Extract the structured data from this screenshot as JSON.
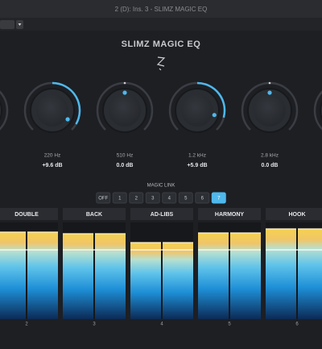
{
  "window": {
    "title": "2 (D): Ins. 3 - SLIMZ MAGIC EQ"
  },
  "plugin": {
    "title": "SLIMZ MAGIC EQ"
  },
  "bands": [
    {
      "freq": "220 Hz",
      "gain": "+9.6 dB"
    },
    {
      "freq": "510 Hz",
      "gain": "0.0 dB"
    },
    {
      "freq": "1.2 kHz",
      "gain": "+5.9 dB"
    },
    {
      "freq": "2.8 kHz",
      "gain": "0.0 dB"
    }
  ],
  "magic_link": {
    "label": "MAGIC LINK",
    "buttons": [
      "OFF",
      "1",
      "2",
      "3",
      "4",
      "5",
      "6",
      "7"
    ],
    "active_index": 7
  },
  "channels": [
    {
      "name": "DOUBLE",
      "number": "2"
    },
    {
      "name": "BACK",
      "number": "3"
    },
    {
      "name": "AD-LIBS",
      "number": "4"
    },
    {
      "name": "HARMONY",
      "number": "5"
    },
    {
      "name": "HOOK",
      "number": "6"
    }
  ]
}
